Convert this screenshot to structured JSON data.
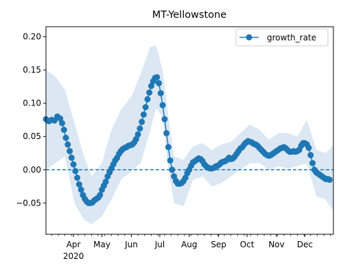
{
  "chart_data": {
    "type": "line",
    "title": "MT-Yellowstone",
    "xlabel": "",
    "ylabel": "",
    "x_range": [
      "2020-03-03",
      "2020-12-31"
    ],
    "ylim": [
      -0.097,
      0.215
    ],
    "y_ticks": [
      -0.05,
      0.0,
      0.05,
      0.1,
      0.15,
      0.2
    ],
    "y_tick_labels": [
      "−0.05",
      "0.00",
      "0.05",
      "0.10",
      "0.15",
      "0.20"
    ],
    "x_ticks": [
      {
        "date": "2020-04-01",
        "label": "Apr",
        "sublabel": "2020"
      },
      {
        "date": "2020-05-01",
        "label": "May",
        "sublabel": ""
      },
      {
        "date": "2020-06-01",
        "label": "Jun",
        "sublabel": ""
      },
      {
        "date": "2020-07-01",
        "label": "Jul",
        "sublabel": ""
      },
      {
        "date": "2020-08-01",
        "label": "Aug",
        "sublabel": ""
      },
      {
        "date": "2020-09-01",
        "label": "Sep",
        "sublabel": ""
      },
      {
        "date": "2020-10-01",
        "label": "Oct",
        "sublabel": ""
      },
      {
        "date": "2020-11-01",
        "label": "Nov",
        "sublabel": ""
      },
      {
        "date": "2020-12-01",
        "label": "Dec",
        "sublabel": ""
      }
    ],
    "grid": false,
    "legend": {
      "position": "upper right",
      "entries": [
        "growth_rate"
      ]
    },
    "reference_line": {
      "y": 0.0,
      "style": "dashed"
    },
    "colors": {
      "series": "#1f77b4",
      "band": "#dbe7f3"
    },
    "series": [
      {
        "name": "growth_rate",
        "marker": "circle",
        "points": [
          [
            "2020-03-03",
            0.076
          ],
          [
            "2020-03-06",
            0.073
          ],
          [
            "2020-03-09",
            0.075
          ],
          [
            "2020-03-12",
            0.074
          ],
          [
            "2020-03-15",
            0.08
          ],
          [
            "2020-03-18",
            0.077
          ],
          [
            "2020-03-20",
            0.07
          ],
          [
            "2020-03-22",
            0.06
          ],
          [
            "2020-03-24",
            0.048
          ],
          [
            "2020-03-26",
            0.038
          ],
          [
            "2020-03-28",
            0.028
          ],
          [
            "2020-03-30",
            0.018
          ],
          [
            "2020-04-01",
            0.008
          ],
          [
            "2020-04-03",
            -0.002
          ],
          [
            "2020-04-05",
            -0.012
          ],
          [
            "2020-04-07",
            -0.022
          ],
          [
            "2020-04-09",
            -0.03
          ],
          [
            "2020-04-11",
            -0.038
          ],
          [
            "2020-04-13",
            -0.044
          ],
          [
            "2020-04-15",
            -0.048
          ],
          [
            "2020-04-17",
            -0.05
          ],
          [
            "2020-04-19",
            -0.05
          ],
          [
            "2020-04-21",
            -0.049
          ],
          [
            "2020-04-23",
            -0.046
          ],
          [
            "2020-04-25",
            -0.044
          ],
          [
            "2020-04-27",
            -0.042
          ],
          [
            "2020-04-29",
            -0.038
          ],
          [
            "2020-05-01",
            -0.03
          ],
          [
            "2020-05-03",
            -0.024
          ],
          [
            "2020-05-05",
            -0.018
          ],
          [
            "2020-05-07",
            -0.01
          ],
          [
            "2020-05-09",
            -0.004
          ],
          [
            "2020-05-11",
            0.002
          ],
          [
            "2020-05-13",
            0.008
          ],
          [
            "2020-05-15",
            0.014
          ],
          [
            "2020-05-17",
            0.018
          ],
          [
            "2020-05-19",
            0.024
          ],
          [
            "2020-05-21",
            0.028
          ],
          [
            "2020-05-23",
            0.031
          ],
          [
            "2020-05-25",
            0.033
          ],
          [
            "2020-05-27",
            0.034
          ],
          [
            "2020-05-29",
            0.036
          ],
          [
            "2020-05-31",
            0.037
          ],
          [
            "2020-06-02",
            0.038
          ],
          [
            "2020-06-04",
            0.041
          ],
          [
            "2020-06-06",
            0.046
          ],
          [
            "2020-06-08",
            0.053
          ],
          [
            "2020-06-10",
            0.062
          ],
          [
            "2020-06-12",
            0.072
          ],
          [
            "2020-06-14",
            0.083
          ],
          [
            "2020-06-16",
            0.094
          ],
          [
            "2020-06-18",
            0.106
          ],
          [
            "2020-06-20",
            0.116
          ],
          [
            "2020-06-22",
            0.126
          ],
          [
            "2020-06-24",
            0.133
          ],
          [
            "2020-06-26",
            0.138
          ],
          [
            "2020-06-28",
            0.139
          ],
          [
            "2020-06-30",
            0.13
          ],
          [
            "2020-07-02",
            0.115
          ],
          [
            "2020-07-04",
            0.097
          ],
          [
            "2020-07-06",
            0.076
          ],
          [
            "2020-07-08",
            0.055
          ],
          [
            "2020-07-10",
            0.034
          ],
          [
            "2020-07-12",
            0.014
          ],
          [
            "2020-07-14",
            0.0
          ],
          [
            "2020-07-16",
            -0.01
          ],
          [
            "2020-07-18",
            -0.017
          ],
          [
            "2020-07-20",
            -0.021
          ],
          [
            "2020-07-22",
            -0.021
          ],
          [
            "2020-07-24",
            -0.02
          ],
          [
            "2020-07-26",
            -0.017
          ],
          [
            "2020-07-28",
            -0.012
          ],
          [
            "2020-07-30",
            -0.005
          ],
          [
            "2020-08-01",
            0.0
          ],
          [
            "2020-08-03",
            0.006
          ],
          [
            "2020-08-05",
            0.011
          ],
          [
            "2020-08-07",
            0.013
          ],
          [
            "2020-08-09",
            0.015
          ],
          [
            "2020-08-11",
            0.017
          ],
          [
            "2020-08-13",
            0.016
          ],
          [
            "2020-08-15",
            0.013
          ],
          [
            "2020-08-17",
            0.008
          ],
          [
            "2020-08-19",
            0.005
          ],
          [
            "2020-08-21",
            0.003
          ],
          [
            "2020-08-23",
            0.002
          ],
          [
            "2020-08-25",
            0.002
          ],
          [
            "2020-08-27",
            0.003
          ],
          [
            "2020-08-29",
            0.005
          ],
          [
            "2020-08-31",
            0.006
          ],
          [
            "2020-09-02",
            0.008
          ],
          [
            "2020-09-04",
            0.011
          ],
          [
            "2020-09-06",
            0.012
          ],
          [
            "2020-09-08",
            0.013
          ],
          [
            "2020-09-10",
            0.015
          ],
          [
            "2020-09-12",
            0.018
          ],
          [
            "2020-09-14",
            0.016
          ],
          [
            "2020-09-16",
            0.017
          ],
          [
            "2020-09-18",
            0.02
          ],
          [
            "2020-09-20",
            0.024
          ],
          [
            "2020-09-22",
            0.028
          ],
          [
            "2020-09-24",
            0.032
          ],
          [
            "2020-09-26",
            0.034
          ],
          [
            "2020-09-28",
            0.038
          ],
          [
            "2020-09-30",
            0.041
          ],
          [
            "2020-10-02",
            0.043
          ],
          [
            "2020-10-04",
            0.042
          ],
          [
            "2020-10-06",
            0.041
          ],
          [
            "2020-10-08",
            0.039
          ],
          [
            "2020-10-10",
            0.038
          ],
          [
            "2020-10-12",
            0.036
          ],
          [
            "2020-10-14",
            0.033
          ],
          [
            "2020-10-16",
            0.03
          ],
          [
            "2020-10-18",
            0.027
          ],
          [
            "2020-10-20",
            0.024
          ],
          [
            "2020-10-22",
            0.022
          ],
          [
            "2020-10-24",
            0.021
          ],
          [
            "2020-10-26",
            0.022
          ],
          [
            "2020-10-28",
            0.024
          ],
          [
            "2020-10-30",
            0.026
          ],
          [
            "2020-11-01",
            0.028
          ],
          [
            "2020-11-03",
            0.03
          ],
          [
            "2020-11-05",
            0.032
          ],
          [
            "2020-11-07",
            0.033
          ],
          [
            "2020-11-09",
            0.034
          ],
          [
            "2020-11-11",
            0.032
          ],
          [
            "2020-11-13",
            0.029
          ],
          [
            "2020-11-15",
            0.027
          ],
          [
            "2020-11-17",
            0.027
          ],
          [
            "2020-11-19",
            0.028
          ],
          [
            "2020-11-21",
            0.027
          ],
          [
            "2020-11-23",
            0.028
          ],
          [
            "2020-11-25",
            0.03
          ],
          [
            "2020-11-27",
            0.036
          ],
          [
            "2020-11-29",
            0.04
          ],
          [
            "2020-12-01",
            0.04
          ],
          [
            "2020-12-03",
            0.038
          ],
          [
            "2020-12-05",
            0.033
          ],
          [
            "2020-12-07",
            0.022
          ],
          [
            "2020-12-09",
            0.01
          ],
          [
            "2020-12-11",
            0.0
          ],
          [
            "2020-12-13",
            -0.004
          ],
          [
            "2020-12-15",
            -0.006
          ],
          [
            "2020-12-17",
            -0.008
          ],
          [
            "2020-12-19",
            -0.01
          ],
          [
            "2020-12-21",
            -0.012
          ],
          [
            "2020-12-23",
            -0.014
          ],
          [
            "2020-12-25",
            -0.014
          ],
          [
            "2020-12-27",
            -0.015
          ]
        ],
        "band_upper": [
          [
            "2020-03-03",
            0.15
          ],
          [
            "2020-03-13",
            0.14
          ],
          [
            "2020-03-23",
            0.12
          ],
          [
            "2020-04-02",
            0.07
          ],
          [
            "2020-04-12",
            0.02
          ],
          [
            "2020-04-20",
            -0.01
          ],
          [
            "2020-05-01",
            0.01
          ],
          [
            "2020-05-11",
            0.06
          ],
          [
            "2020-05-21",
            0.09
          ],
          [
            "2020-06-01",
            0.11
          ],
          [
            "2020-06-11",
            0.145
          ],
          [
            "2020-06-21",
            0.185
          ],
          [
            "2020-06-27",
            0.187
          ],
          [
            "2020-07-04",
            0.15
          ],
          [
            "2020-07-10",
            0.08
          ],
          [
            "2020-07-16",
            0.02
          ],
          [
            "2020-07-26",
            0.015
          ],
          [
            "2020-08-05",
            0.035
          ],
          [
            "2020-08-15",
            0.04
          ],
          [
            "2020-08-25",
            0.03
          ],
          [
            "2020-09-04",
            0.038
          ],
          [
            "2020-09-14",
            0.042
          ],
          [
            "2020-09-24",
            0.055
          ],
          [
            "2020-10-04",
            0.068
          ],
          [
            "2020-10-14",
            0.06
          ],
          [
            "2020-10-24",
            0.045
          ],
          [
            "2020-11-03",
            0.055
          ],
          [
            "2020-11-13",
            0.055
          ],
          [
            "2020-11-23",
            0.05
          ],
          [
            "2020-12-03",
            0.075
          ],
          [
            "2020-12-13",
            0.03
          ],
          [
            "2020-12-23",
            0.025
          ],
          [
            "2020-12-31",
            0.037
          ]
        ],
        "band_lower": [
          [
            "2020-03-03",
            0.0
          ],
          [
            "2020-03-13",
            0.01
          ],
          [
            "2020-03-23",
            0.02
          ],
          [
            "2020-04-02",
            -0.05
          ],
          [
            "2020-04-12",
            -0.075
          ],
          [
            "2020-04-20",
            -0.082
          ],
          [
            "2020-05-01",
            -0.07
          ],
          [
            "2020-05-11",
            -0.045
          ],
          [
            "2020-05-21",
            -0.015
          ],
          [
            "2020-06-01",
            -0.002
          ],
          [
            "2020-06-11",
            0.01
          ],
          [
            "2020-06-21",
            0.06
          ],
          [
            "2020-06-27",
            0.092
          ],
          [
            "2020-07-04",
            0.08
          ],
          [
            "2020-07-10",
            0.0
          ],
          [
            "2020-07-16",
            -0.05
          ],
          [
            "2020-07-26",
            -0.055
          ],
          [
            "2020-08-05",
            -0.015
          ],
          [
            "2020-08-15",
            -0.01
          ],
          [
            "2020-08-25",
            -0.025
          ],
          [
            "2020-09-04",
            -0.02
          ],
          [
            "2020-09-14",
            -0.01
          ],
          [
            "2020-09-24",
            0.0
          ],
          [
            "2020-10-04",
            0.01
          ],
          [
            "2020-10-14",
            0.01
          ],
          [
            "2020-10-24",
            0.0
          ],
          [
            "2020-11-03",
            0.005
          ],
          [
            "2020-11-13",
            0.002
          ],
          [
            "2020-11-23",
            0.005
          ],
          [
            "2020-12-03",
            0.01
          ],
          [
            "2020-12-13",
            -0.04
          ],
          [
            "2020-12-23",
            -0.045
          ],
          [
            "2020-12-31",
            -0.062
          ]
        ]
      }
    ]
  }
}
